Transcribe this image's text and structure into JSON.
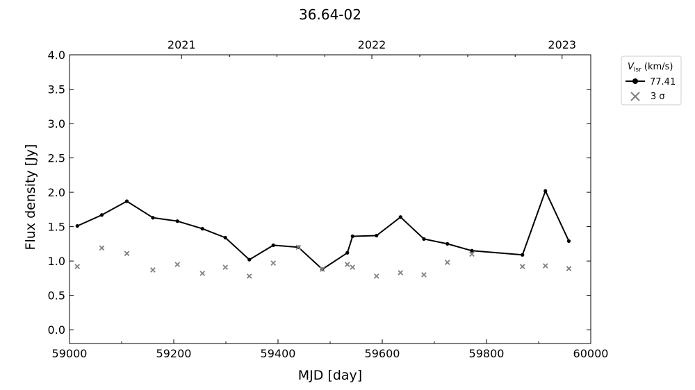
{
  "chart_data": {
    "type": "line",
    "title": "36.64-02",
    "xlabel": "MJD [day]",
    "ylabel": "Flux density [Jy]",
    "xlim": [
      59000,
      60000
    ],
    "ylim": [
      -0.2,
      4.0
    ],
    "xticks": [
      59000,
      59200,
      59400,
      59600,
      59800,
      60000
    ],
    "yticks": [
      0.0,
      0.5,
      1.0,
      1.5,
      2.0,
      2.5,
      3.0,
      3.5,
      4.0
    ],
    "ytick_labels": [
      "0.0",
      "0.5",
      "1.0",
      "1.5",
      "2.0",
      "2.5",
      "3.0",
      "3.5",
      "4.0"
    ],
    "top_axis": {
      "labels": [
        "2021",
        "2022",
        "2023"
      ],
      "positions_mjd": [
        59215,
        59580,
        59945
      ],
      "minor_positions_mjd": [
        59307,
        59398,
        59490,
        59672,
        59764,
        59855
      ]
    },
    "legend": {
      "title_main": "V",
      "title_sub": "lsr",
      "title_unit": " (km/s)",
      "position": "outside-right",
      "entries": [
        "77.41",
        "3 σ"
      ]
    },
    "series": [
      {
        "name": "77.41",
        "style": "line-marker",
        "color": "#000000",
        "x": [
          59015,
          59062,
          59110,
          59160,
          59207,
          59255,
          59299,
          59345,
          59391,
          59439,
          59485,
          59533,
          59543,
          59589,
          59635,
          59680,
          59725,
          59772,
          59869,
          59913,
          59958
        ],
        "y": [
          1.51,
          1.67,
          1.87,
          1.63,
          1.58,
          1.47,
          1.34,
          1.02,
          1.23,
          1.2,
          0.88,
          1.12,
          1.36,
          1.37,
          1.64,
          1.32,
          1.25,
          1.15,
          1.09,
          2.02,
          1.29
        ]
      },
      {
        "name": "3 σ",
        "style": "x-marker",
        "color": "#808080",
        "x": [
          59015,
          59062,
          59110,
          59160,
          59207,
          59255,
          59299,
          59345,
          59391,
          59439,
          59485,
          59533,
          59543,
          59589,
          59635,
          59680,
          59725,
          59772,
          59869,
          59913,
          59958
        ],
        "y": [
          0.92,
          1.19,
          1.11,
          0.87,
          0.95,
          0.82,
          0.91,
          0.78,
          0.97,
          1.2,
          0.88,
          0.95,
          0.91,
          0.78,
          0.83,
          0.8,
          0.98,
          1.1,
          0.92,
          0.93,
          0.89
        ]
      }
    ]
  }
}
